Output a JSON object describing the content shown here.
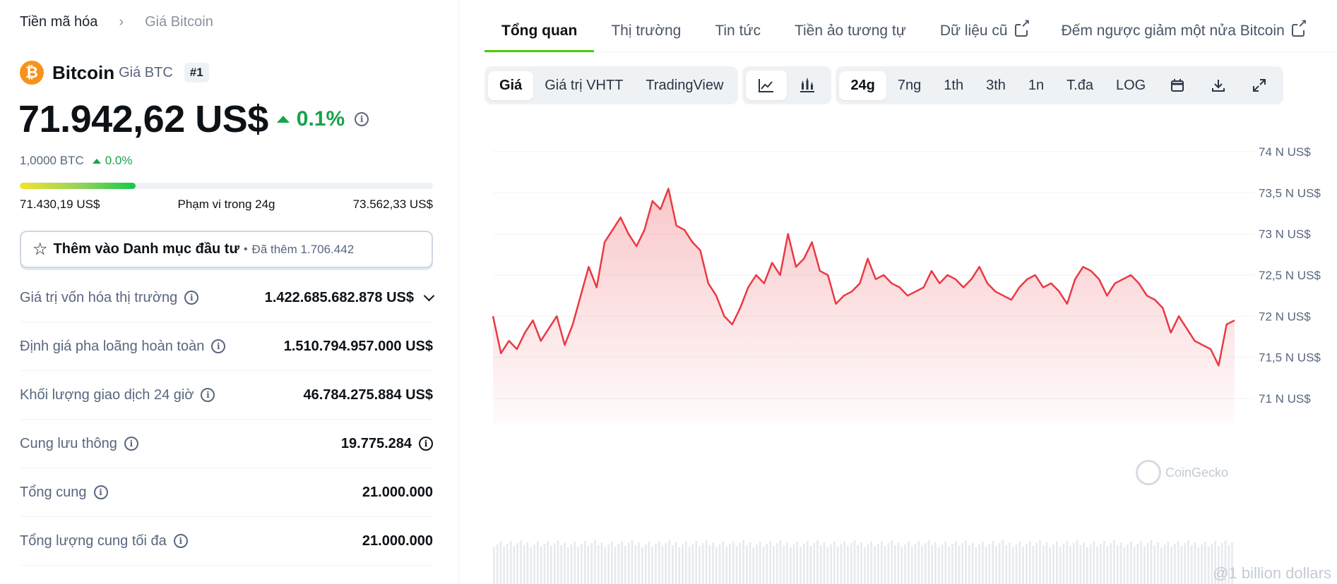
{
  "breadcrumb": {
    "root": "Tiền mã hóa",
    "separator": "›",
    "current": "Giá Bitcoin"
  },
  "coin": {
    "logo_glyph": "₿",
    "name": "Bitcoin",
    "subtitle": "Giá BTC",
    "rank": "#1",
    "price": "71.942,62 US$",
    "change_24h": "0.1%",
    "btc_price": "1,0000 BTC",
    "btc_change": "0.0%",
    "range_low": "71.430,19 US$",
    "range_label": "Phạm vi trong 24g",
    "range_high": "73.562,33 US$",
    "range_position": 0.28
  },
  "watchlist": {
    "label": "Thêm vào Danh mục đầu tư",
    "dot": "•",
    "count": "Đã thêm 1.706.442"
  },
  "stats": [
    {
      "label": "Giá trị vốn hóa thị trường",
      "value": "1.422.685.682.878 US$"
    },
    {
      "label": "Định giá pha loãng hoàn toàn",
      "value": "1.510.794.957.000 US$"
    },
    {
      "label": "Khối lượng giao dịch 24 giờ",
      "value": "46.784.275.884 US$"
    },
    {
      "label": "Cung lưu thông",
      "value": "19.775.284"
    },
    {
      "label": "Tổng cung",
      "value": "21.000.000"
    },
    {
      "label": "Tổng lượng cung tối đa",
      "value": "21.000.000"
    }
  ],
  "tabs": [
    {
      "label": "Tổng quan"
    },
    {
      "label": "Thị trường"
    },
    {
      "label": "Tin tức"
    },
    {
      "label": "Tiền ảo tương tự"
    },
    {
      "label": "Dữ liệu cũ"
    },
    {
      "label": "Đếm ngược giảm một nửa Bitcoin"
    }
  ],
  "toolbar": {
    "views": [
      "Giá",
      "Giá trị VHTT",
      "TradingView"
    ],
    "ranges": [
      "24g",
      "7ng",
      "1th",
      "3th",
      "1n",
      "T.đa",
      "LOG"
    ],
    "icons": [
      "line-chart-icon",
      "candlestick-icon",
      "calendar-icon",
      "download-icon",
      "expand-icon"
    ]
  },
  "watermark": "CoinGecko",
  "footer_watermark": "@1 billion dollars",
  "colors": {
    "accent_green": "#4bcc00",
    "up_green": "#16a34a",
    "line_red": "#ea3943",
    "btc_orange": "#f7931a"
  },
  "chart_data": {
    "type": "area",
    "x_label": "",
    "y_label": "",
    "ylim": [
      70700,
      74300
    ],
    "yticks": [
      {
        "value": 74000,
        "label": "74 N US$"
      },
      {
        "value": 73500,
        "label": "73,5 N US$"
      },
      {
        "value": 73000,
        "label": "73 N US$"
      },
      {
        "value": 72500,
        "label": "72,5 N US$"
      },
      {
        "value": 72000,
        "label": "72 N US$"
      },
      {
        "value": 71500,
        "label": "71,5 N US$"
      },
      {
        "value": 71000,
        "label": "71 N US$"
      }
    ],
    "grid": true,
    "series": [
      {
        "values": [
          72000,
          71550,
          71700,
          71600,
          71800,
          71950,
          71700,
          71850,
          72000,
          71650,
          71900,
          72250,
          72600,
          72350,
          72900,
          73050,
          73200,
          73000,
          72850,
          73050,
          73400,
          73300,
          73550,
          73100,
          73050,
          72900,
          72800,
          72400,
          72250,
          72000,
          71900,
          72100,
          72350,
          72500,
          72400,
          72650,
          72500,
          73000,
          72600,
          72700,
          72900,
          72550,
          72500,
          72150,
          72250,
          72300,
          72400,
          72700,
          72450,
          72500,
          72400,
          72350,
          72250,
          72300,
          72350,
          72550,
          72400,
          72500,
          72450,
          72350,
          72450,
          72600,
          72400,
          72300,
          72250,
          72200,
          72350,
          72450,
          72500,
          72350,
          72400,
          72300,
          72150,
          72450,
          72600,
          72550,
          72450,
          72250,
          72400,
          72450,
          72500,
          72400,
          72250,
          72200,
          72100,
          71800,
          72000,
          71850,
          71700,
          71650,
          71600,
          71400,
          71900,
          71950
        ]
      }
    ]
  }
}
